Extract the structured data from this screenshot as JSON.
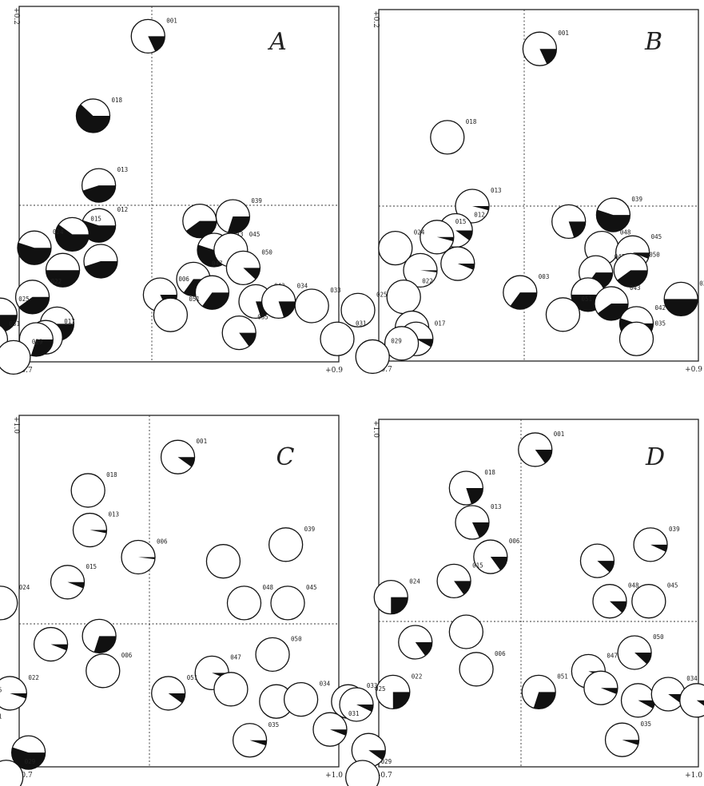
{
  "chart_data": [
    {
      "panel": "A",
      "type": "scatter",
      "xlim": [
        -0.7,
        0.9
      ],
      "ylim": [
        -0.7,
        0.2
      ],
      "x_tick_labels": [
        "-0.7",
        "+0.9"
      ],
      "y_tick_labels": [
        "+0.2",
        "-0.7"
      ],
      "sites": [
        {
          "label": "001",
          "x": -0.02,
          "y": 0.17,
          "filled": 0.18
        },
        {
          "label": "018",
          "x": -0.31,
          "y": 0.09,
          "filled": 0.62
        },
        {
          "label": "013",
          "x": -0.28,
          "y": 0.02,
          "filled": 0.45
        },
        {
          "label": "039",
          "x": 0.39,
          "y": -0.05,
          "filled": 0.3
        },
        {
          "label": "",
          "x": 0.23,
          "y": -0.07,
          "filled": 0.4
        },
        {
          "label": "012",
          "x": -0.28,
          "y": -0.09,
          "filled": 0.55
        },
        {
          "label": "015",
          "x": -0.42,
          "y": -0.13,
          "filled": 0.6
        },
        {
          "label": "024",
          "x": -0.62,
          "y": -0.19,
          "filled": 0.55
        },
        {
          "label": "043",
          "x": 0.3,
          "y": -0.2,
          "filled": 0.55
        },
        {
          "label": "045",
          "x": 0.38,
          "y": -0.2,
          "filled": 0.0
        },
        {
          "label": "",
          "x": -0.27,
          "y": -0.25,
          "filled": 0.45
        },
        {
          "label": "",
          "x": -0.47,
          "y": -0.29,
          "filled": 0.5
        },
        {
          "label": "047",
          "x": 0.2,
          "y": -0.33,
          "filled": 0.35
        },
        {
          "label": "050",
          "x": 0.44,
          "y": -0.28,
          "filled": 0.12
        },
        {
          "label": "006",
          "x": 0.04,
          "y": -0.4,
          "filled": 0.18
        },
        {
          "label": "",
          "x": 0.29,
          "y": -0.39,
          "filled": 0.35
        },
        {
          "label": "022",
          "x": -0.63,
          "y": -0.41,
          "filled": 0.4
        },
        {
          "label": "025",
          "x": -0.8,
          "y": -0.49,
          "filled": 0.4
        },
        {
          "label": "043",
          "x": 0.5,
          "y": -0.43,
          "filled": 0.2
        },
        {
          "label": "034",
          "x": 0.61,
          "y": -0.43,
          "filled": 0.2
        },
        {
          "label": "033",
          "x": 0.77,
          "y": -0.45,
          "filled": 0.0
        },
        {
          "label": "051",
          "x": 0.09,
          "y": -0.49,
          "filled": 0.0
        },
        {
          "label": "",
          "x": -0.5,
          "y": -0.53,
          "filled": 0.45
        },
        {
          "label": "031",
          "x": -0.85,
          "y": -0.6,
          "filled": 0.0
        },
        {
          "label": "017",
          "x": -0.56,
          "y": -0.59,
          "filled": 0.0
        },
        {
          "label": "",
          "x": -0.61,
          "y": -0.6,
          "filled": 0.3
        },
        {
          "label": "035",
          "x": 0.42,
          "y": -0.57,
          "filled": 0.15
        },
        {
          "label": "029",
          "x": -0.73,
          "y": -0.68,
          "filled": 0.0
        }
      ]
    },
    {
      "panel": "B",
      "type": "scatter",
      "xlim": [
        -0.7,
        0.9
      ],
      "ylim": [
        -0.7,
        0.2
      ],
      "x_tick_labels": [
        "-0.7",
        "+0.9"
      ],
      "y_tick_labels": [
        "+0.2",
        "-0.7"
      ],
      "sites": [
        {
          "label": "001",
          "x": 0.08,
          "y": 0.16,
          "filled": 0.18
        },
        {
          "label": "018",
          "x": -0.37,
          "y": 0.07,
          "filled": 0.0
        },
        {
          "label": "013",
          "x": -0.25,
          "y": 0.0,
          "filled": 0.04
        },
        {
          "label": "039",
          "x": 0.46,
          "y": -0.04,
          "filled": 0.55
        },
        {
          "label": "",
          "x": 0.23,
          "y": -0.07,
          "filled": 0.2
        },
        {
          "label": "012",
          "x": -0.33,
          "y": -0.11,
          "filled": 0.1
        },
        {
          "label": "015",
          "x": -0.42,
          "y": -0.14,
          "filled": 0.04
        },
        {
          "label": "024",
          "x": -0.62,
          "y": -0.19,
          "filled": 0.0
        },
        {
          "label": "048",
          "x": 0.4,
          "y": -0.19,
          "filled": 0.0
        },
        {
          "label": "045",
          "x": 0.56,
          "y": -0.21,
          "filled": 0.06
        },
        {
          "label": "",
          "x": -0.32,
          "y": -0.26,
          "filled": 0.06
        },
        {
          "label": "",
          "x": -0.5,
          "y": -0.29,
          "filled": 0.02
        },
        {
          "label": "047",
          "x": 0.37,
          "y": -0.3,
          "filled": 0.35
        },
        {
          "label": "050",
          "x": 0.55,
          "y": -0.29,
          "filled": 0.4
        },
        {
          "label": "003",
          "x": -0.02,
          "y": -0.39,
          "filled": 0.35
        },
        {
          "label": "",
          "x": 0.33,
          "y": -0.4,
          "filled": 0.5
        },
        {
          "label": "022",
          "x": -0.58,
          "y": -0.41,
          "filled": 0.0
        },
        {
          "label": "025",
          "x": -0.8,
          "y": -0.47,
          "filled": 0.0
        },
        {
          "label": "043",
          "x": 0.45,
          "y": -0.44,
          "filled": 0.4
        },
        {
          "label": "033",
          "x": 0.81,
          "y": -0.42,
          "filled": 0.5
        },
        {
          "label": "051",
          "x": 0.2,
          "y": -0.49,
          "filled": 0.0
        },
        {
          "label": "",
          "x": -0.54,
          "y": -0.55,
          "filled": 0.07
        },
        {
          "label": "031",
          "x": -0.9,
          "y": -0.6,
          "filled": 0.0
        },
        {
          "label": "017",
          "x": -0.52,
          "y": -0.6,
          "filled": 0.08
        },
        {
          "label": "",
          "x": -0.59,
          "y": -0.62,
          "filled": 0.0
        },
        {
          "label": "042",
          "x": 0.58,
          "y": -0.53,
          "filled": 0.55
        },
        {
          "label": "035",
          "x": 0.58,
          "y": -0.6,
          "filled": 0.0
        },
        {
          "label": "029",
          "x": -0.73,
          "y": -0.68,
          "filled": 0.0
        }
      ]
    },
    {
      "panel": "C",
      "type": "scatter",
      "xlim": [
        -0.7,
        1.0
      ],
      "ylim": [
        -0.7,
        1.0
      ],
      "x_tick_labels": [
        "-0.7",
        "+1.0"
      ],
      "y_tick_labels": [
        "+1.0",
        "-0.7"
      ],
      "sites": [
        {
          "label": "001",
          "x": 0.15,
          "y": 0.8,
          "filled": 0.1
        },
        {
          "label": "018",
          "x": -0.33,
          "y": 0.64,
          "filled": 0.0
        },
        {
          "label": "013",
          "x": -0.32,
          "y": 0.45,
          "filled": 0.03
        },
        {
          "label": "039",
          "x": 0.72,
          "y": 0.38,
          "filled": 0.0
        },
        {
          "label": "006",
          "x": -0.06,
          "y": 0.32,
          "filled": 0.02
        },
        {
          "label": "",
          "x": 0.39,
          "y": 0.3,
          "filled": 0.0
        },
        {
          "label": "015",
          "x": -0.44,
          "y": 0.2,
          "filled": 0.06
        },
        {
          "label": "024",
          "x": -0.8,
          "y": 0.1,
          "filled": 0.0
        },
        {
          "label": "048",
          "x": 0.5,
          "y": 0.1,
          "filled": 0.0
        },
        {
          "label": "045",
          "x": 0.73,
          "y": 0.1,
          "filled": 0.0
        },
        {
          "label": "",
          "x": -0.27,
          "y": -0.06,
          "filled": 0.3
        },
        {
          "label": "",
          "x": -0.53,
          "y": -0.1,
          "filled": 0.06
        },
        {
          "label": "047",
          "x": 0.33,
          "y": -0.24,
          "filled": 0.06
        },
        {
          "label": "050",
          "x": 0.65,
          "y": -0.15,
          "filled": 0.0
        },
        {
          "label": "006",
          "x": -0.25,
          "y": -0.23,
          "filled": 0.0
        },
        {
          "label": "",
          "x": 0.43,
          "y": -0.32,
          "filled": 0.0
        },
        {
          "label": "022",
          "x": -0.75,
          "y": -0.34,
          "filled": 0.05
        },
        {
          "label": "025",
          "x": -0.95,
          "y": -0.4,
          "filled": 0.0
        },
        {
          "label": "051",
          "x": 0.1,
          "y": -0.34,
          "filled": 0.1
        },
        {
          "label": "043",
          "x": 0.67,
          "y": -0.38,
          "filled": 0.0
        },
        {
          "label": "034",
          "x": 0.8,
          "y": -0.37,
          "filled": 0.0
        },
        {
          "label": "033",
          "x": 1.05,
          "y": -0.38,
          "filled": 0.0
        },
        {
          "label": "031",
          "x": -0.95,
          "y": -0.53,
          "filled": 0.45
        },
        {
          "label": "",
          "x": -0.65,
          "y": -0.63,
          "filled": 0.55
        },
        {
          "label": "035",
          "x": 0.53,
          "y": -0.57,
          "filled": 0.05
        },
        {
          "label": "029",
          "x": -0.77,
          "y": -0.75,
          "filled": 0.0
        }
      ]
    },
    {
      "panel": "D",
      "type": "scatter",
      "xlim": [
        -0.7,
        1.0
      ],
      "ylim": [
        -0.7,
        1.0
      ],
      "x_tick_labels": [
        "-0.7",
        "+1.0"
      ],
      "y_tick_labels": [
        "+1.0",
        "-0.7"
      ],
      "sites": [
        {
          "label": "001",
          "x": 0.08,
          "y": 0.85,
          "filled": 0.15
        },
        {
          "label": "018",
          "x": -0.27,
          "y": 0.66,
          "filled": 0.2
        },
        {
          "label": "013",
          "x": -0.24,
          "y": 0.49,
          "filled": 0.18
        },
        {
          "label": "039",
          "x": 0.73,
          "y": 0.38,
          "filled": 0.07
        },
        {
          "label": "006",
          "x": -0.15,
          "y": 0.32,
          "filled": 0.15
        },
        {
          "label": "",
          "x": 0.43,
          "y": 0.3,
          "filled": 0.12
        },
        {
          "label": "015",
          "x": -0.33,
          "y": 0.2,
          "filled": 0.15
        },
        {
          "label": "024",
          "x": -0.64,
          "y": 0.12,
          "filled": 0.25
        },
        {
          "label": "048",
          "x": 0.5,
          "y": 0.1,
          "filled": 0.12
        },
        {
          "label": "045",
          "x": 0.72,
          "y": 0.1,
          "filled": 0.0
        },
        {
          "label": "",
          "x": -0.27,
          "y": -0.05,
          "filled": 0.0
        },
        {
          "label": "",
          "x": -0.52,
          "y": -0.1,
          "filled": 0.15
        },
        {
          "label": "047",
          "x": 0.38,
          "y": -0.24,
          "filled": 0.06
        },
        {
          "label": "050",
          "x": 0.64,
          "y": -0.15,
          "filled": 0.12
        },
        {
          "label": "006",
          "x": -0.22,
          "y": -0.23,
          "filled": 0.0
        },
        {
          "label": "",
          "x": 0.45,
          "y": -0.32,
          "filled": 0.06
        },
        {
          "label": "022",
          "x": -0.63,
          "y": -0.34,
          "filled": 0.25
        },
        {
          "label": "025",
          "x": -0.81,
          "y": -0.4,
          "filled": 0.07
        },
        {
          "label": "051",
          "x": 0.1,
          "y": -0.34,
          "filled": 0.3
        },
        {
          "label": "043",
          "x": 0.66,
          "y": -0.38,
          "filled": 0.08
        },
        {
          "label": "034",
          "x": 0.83,
          "y": -0.35,
          "filled": 0.1
        },
        {
          "label": "033",
          "x": 0.99,
          "y": -0.38,
          "filled": 0.1
        },
        {
          "label": "031",
          "x": -0.94,
          "y": -0.52,
          "filled": 0.06
        },
        {
          "label": "",
          "x": -0.75,
          "y": -0.62,
          "filled": 0.1
        },
        {
          "label": "035",
          "x": 0.57,
          "y": -0.57,
          "filled": 0.05
        },
        {
          "label": "029",
          "x": -0.78,
          "y": -0.75,
          "filled": 0.0
        }
      ]
    }
  ]
}
